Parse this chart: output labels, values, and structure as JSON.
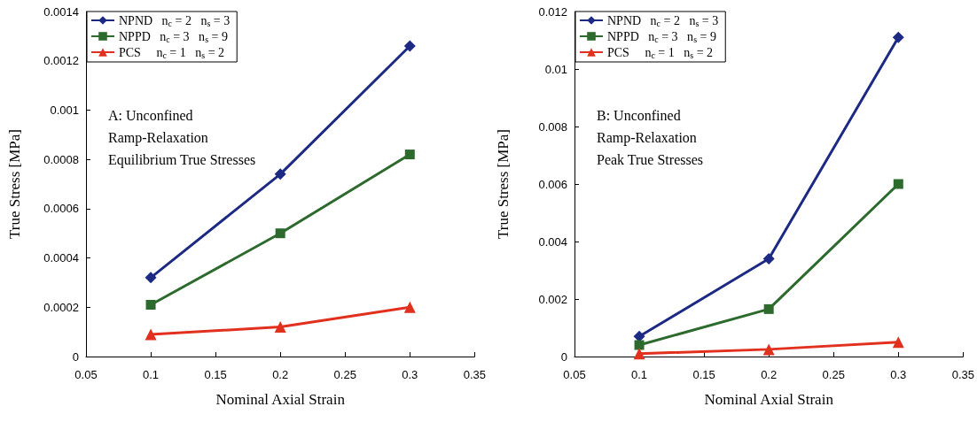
{
  "chart_data": [
    {
      "type": "line",
      "xlabel": "Nominal Axial Strain",
      "ylabel": "True Stress [MPa]",
      "x": [
        0.1,
        0.2,
        0.3
      ],
      "annotations": [
        "A: Unconfined",
        "Ramp-Relaxation",
        "Equilibrium True Stresses"
      ],
      "xlim": [
        0.05,
        0.35
      ],
      "xticks": [
        0.05,
        0.1,
        0.15,
        0.2,
        0.25,
        0.3,
        0.35
      ],
      "ylim": [
        0,
        0.0014
      ],
      "yticks": [
        0,
        0.0002,
        0.0004,
        0.0006,
        0.0008,
        0.001,
        0.0012,
        0.0014
      ],
      "grid": false,
      "legend": "top left",
      "line_style": "solid",
      "series": [
        {
          "name": "NPND   n$_{c}$ = 2   n$_{s}$ = 3",
          "color": "#1c2a84",
          "marker": "diamond",
          "values": [
            0.00032,
            0.00074,
            0.00126
          ]
        },
        {
          "name": "NPPD   n$_{c}$ = 3   n$_{s}$ = 9",
          "color": "#2d6a2d",
          "marker": "square",
          "values": [
            0.00021,
            0.0005,
            0.00082
          ]
        },
        {
          "name": "PCS     n$_{c}$ = 1   n$_{s}$ = 2",
          "color": "#e2301f",
          "marker": "triangle",
          "values": [
            9e-05,
            0.00012,
            0.0002
          ]
        }
      ]
    },
    {
      "type": "line",
      "xlabel": "Nominal Axial Strain",
      "ylabel": "True Stress [MPa]",
      "x": [
        0.1,
        0.2,
        0.3
      ],
      "annotations": [
        "B: Unconfined",
        "Ramp-Relaxation",
        "Peak True Stresses"
      ],
      "xlim": [
        0.05,
        0.35
      ],
      "xticks": [
        0.05,
        0.1,
        0.15,
        0.2,
        0.25,
        0.3,
        0.35
      ],
      "ylim": [
        0,
        0.012
      ],
      "yticks": [
        0,
        0.002,
        0.004,
        0.006,
        0.008,
        0.01,
        0.012
      ],
      "grid": false,
      "legend": "top left",
      "line_style": "solid",
      "series": [
        {
          "name": "NPND   n$_{c}$ = 2   n$_{s}$ = 3",
          "color": "#1c2a84",
          "marker": "diamond",
          "values": [
            0.0007,
            0.0034,
            0.0111
          ]
        },
        {
          "name": "NPPD   n$_{c}$ = 3   n$_{s}$ = 9",
          "color": "#2d6a2d",
          "marker": "square",
          "values": [
            0.0004,
            0.00165,
            0.006
          ]
        },
        {
          "name": "PCS     n$_{c}$ = 1   n$_{s}$ = 2",
          "color": "#e2301f",
          "marker": "triangle",
          "values": [
            0.0001,
            0.00025,
            0.0005
          ]
        }
      ]
    }
  ]
}
